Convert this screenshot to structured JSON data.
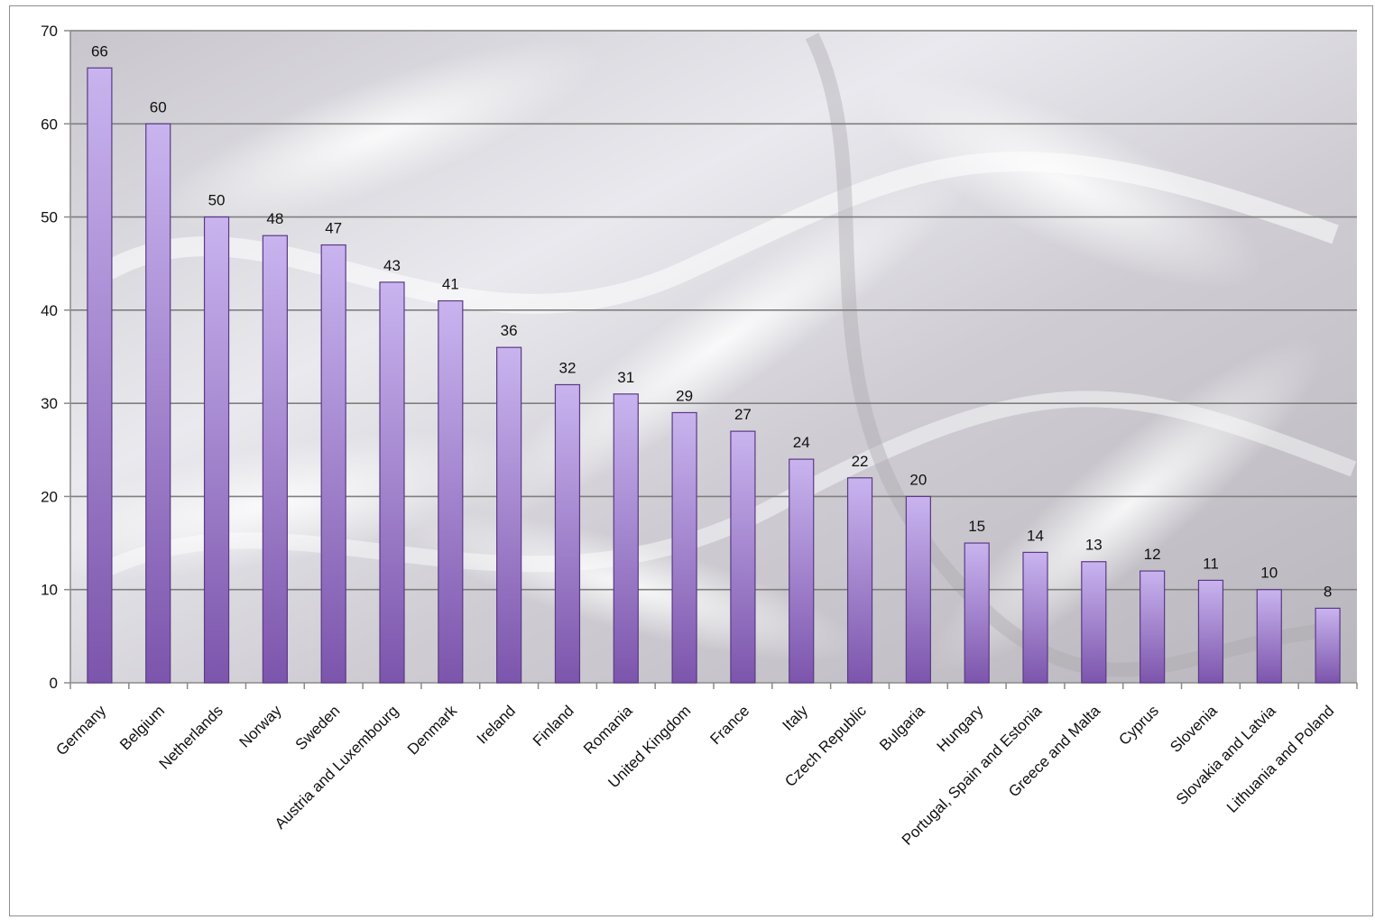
{
  "chart_data": {
    "type": "bar",
    "categories": [
      "Germany",
      "Belgium",
      "Netherlands",
      "Norway",
      "Sweden",
      "Austria  and Luxembourg",
      "Denmark",
      "Ireland",
      "Finland",
      "Romania",
      "United Kingdom",
      "France",
      "Italy",
      "Czech Republic",
      "Bulgaria",
      "Hungary",
      "Portugal, Spain and Estonia",
      "Greece and Malta",
      "Cyprus",
      "Slovenia",
      "Slovakia and Latvia",
      "Lithuania and Poland"
    ],
    "values": [
      66,
      60,
      50,
      48,
      47,
      43,
      41,
      36,
      32,
      31,
      29,
      27,
      24,
      22,
      20,
      15,
      14,
      13,
      12,
      11,
      10,
      8
    ],
    "title": "",
    "xlabel": "",
    "ylabel": "",
    "ylim": [
      0,
      70
    ],
    "yticks": [
      0,
      10,
      20,
      30,
      40,
      50,
      60,
      70
    ],
    "grid": "horizontal",
    "legend": "none",
    "data_labels": true,
    "colors": {
      "bar_top": "#c9b4ef",
      "bar_bottom": "#7c55ac",
      "bar_stroke": "#5b3a86",
      "grid": "#7f7f7f",
      "axis": "#8a8a8a",
      "background": "#d9d9dc"
    }
  }
}
